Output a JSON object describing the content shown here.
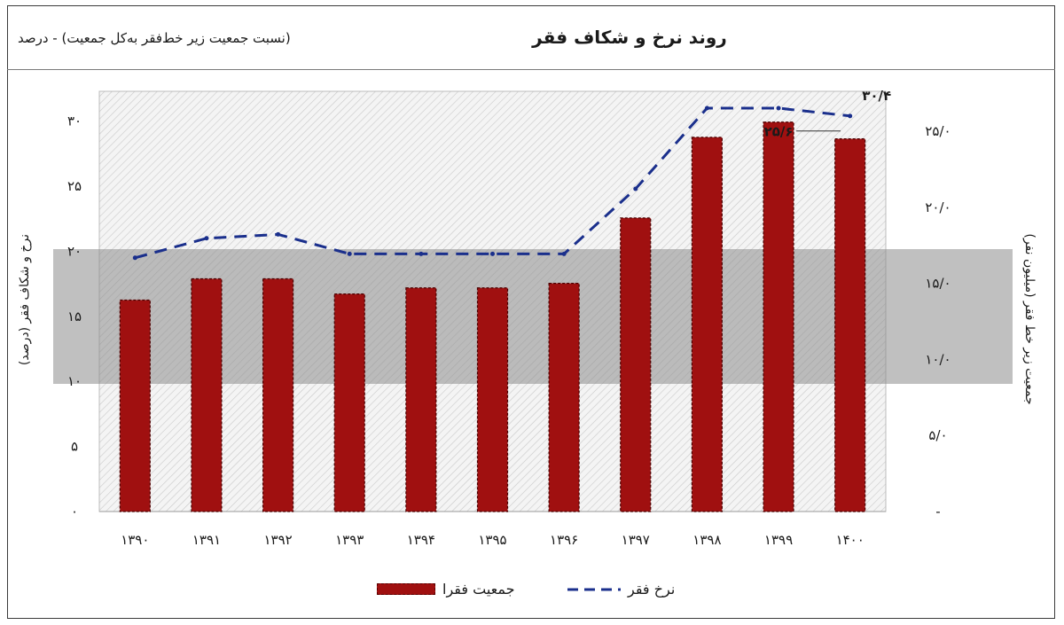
{
  "title": "روند نرخ و شکاف فقر",
  "subtitle": "(نسبت جمعیت زیر خط‌فقر به‌کل جمعیت) - درصد",
  "chart_data": {
    "type": "bar+line",
    "categories": [
      "۱۳۹۰",
      "۱۳۹۱",
      "۱۳۹۲",
      "۱۳۹۳",
      "۱۳۹۴",
      "۱۳۹۵",
      "۱۳۹۶",
      "۱۳۹۷",
      "۱۳۹۸",
      "۱۳۹۹",
      "۱۴۰۰"
    ],
    "series": [
      {
        "name": "جمعیت فقرا",
        "kind": "bar",
        "axis": "right",
        "color": "#a01010",
        "values": [
          13.9,
          15.3,
          15.3,
          14.3,
          14.7,
          14.7,
          15.0,
          19.3,
          24.6,
          25.6,
          24.5
        ],
        "data_labels": [
          "",
          "",
          "",
          "",
          "",
          "",
          "",
          "",
          "",
          "۲۵/۶",
          ""
        ]
      },
      {
        "name": "نرخ فقر",
        "kind": "line",
        "axis": "left",
        "color": "#1a2f8c",
        "values": [
          19.5,
          21.0,
          21.3,
          19.8,
          19.8,
          19.8,
          19.8,
          24.8,
          31.0,
          31.0,
          30.4
        ],
        "data_labels": [
          "",
          "",
          "",
          "",
          "",
          "",
          "",
          "",
          "",
          "",
          "۳۰/۴"
        ]
      }
    ],
    "ylabel_left": "نرخ و شکاف فقر (درصد)",
    "ylabel_right": "جمعیت زیر خط فقر (میلیون نفر)",
    "left_ticks": [
      "۰",
      "۵",
      "۱۰",
      "۱۵",
      "۲۰",
      "۲۵",
      "۳۰"
    ],
    "left_tick_values": [
      0,
      5,
      10,
      15,
      20,
      25,
      30
    ],
    "right_ticks": [
      "-",
      "۵/۰",
      "۱۰/۰",
      "۱۵/۰",
      "۲۰/۰",
      "۲۵/۰"
    ],
    "right_tick_values": [
      0,
      5,
      10,
      15,
      20,
      25
    ],
    "ylim_left": [
      0,
      32.5
    ],
    "ylim_right": [
      0,
      27.8
    ],
    "grid": false,
    "legend_position": "bottom"
  },
  "legend": {
    "bar_label": "جمعیت فقرا",
    "line_label": "نرخ فقر"
  }
}
